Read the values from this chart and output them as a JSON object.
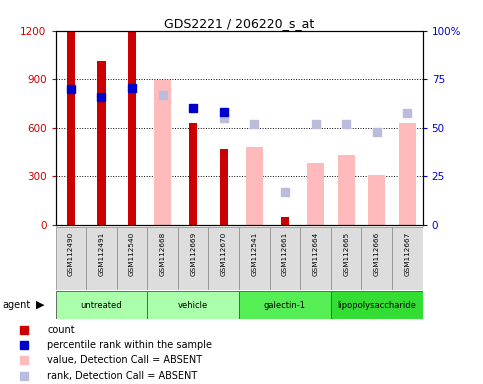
{
  "title": "GDS2221 / 206220_s_at",
  "samples": [
    "GSM112490",
    "GSM112491",
    "GSM112540",
    "GSM112668",
    "GSM112669",
    "GSM112670",
    "GSM112541",
    "GSM112661",
    "GSM112664",
    "GSM112665",
    "GSM112666",
    "GSM112667"
  ],
  "group_spans": [
    {
      "start": 0,
      "end": 2,
      "name": "untreated",
      "color": "#aaffaa"
    },
    {
      "start": 3,
      "end": 5,
      "name": "vehicle",
      "color": "#aaffaa"
    },
    {
      "start": 6,
      "end": 8,
      "name": "galectin-1",
      "color": "#55ee55"
    },
    {
      "start": 9,
      "end": 11,
      "name": "lipopolysaccharide",
      "color": "#33dd33"
    }
  ],
  "count": [
    1190,
    1010,
    1210,
    null,
    630,
    470,
    null,
    50,
    null,
    null,
    null,
    null
  ],
  "percentile_rank": [
    840,
    790,
    845,
    null,
    720,
    700,
    null,
    null,
    null,
    null,
    null,
    null
  ],
  "value_absent": [
    null,
    null,
    null,
    895,
    null,
    null,
    480,
    null,
    380,
    430,
    310,
    630
  ],
  "rank_absent": [
    null,
    null,
    null,
    805,
    null,
    660,
    620,
    200,
    625,
    625,
    575,
    690
  ],
  "left_ylim": [
    0,
    1200
  ],
  "right_ylim": [
    0,
    100
  ],
  "left_yticks": [
    0,
    300,
    600,
    900,
    1200
  ],
  "right_yticks": [
    0,
    25,
    50,
    75,
    100
  ],
  "right_yticklabels": [
    "0",
    "25",
    "50",
    "75",
    "100%"
  ],
  "count_color": "#cc0000",
  "percentile_color": "#0000cc",
  "value_absent_color": "#ffbbbb",
  "rank_absent_color": "#bbbbdd",
  "legend_items": [
    {
      "label": "count",
      "color": "#cc0000"
    },
    {
      "label": "percentile rank within the sample",
      "color": "#0000cc"
    },
    {
      "label": "value, Detection Call = ABSENT",
      "color": "#ffbbbb"
    },
    {
      "label": "rank, Detection Call = ABSENT",
      "color": "#bbbbdd"
    }
  ]
}
